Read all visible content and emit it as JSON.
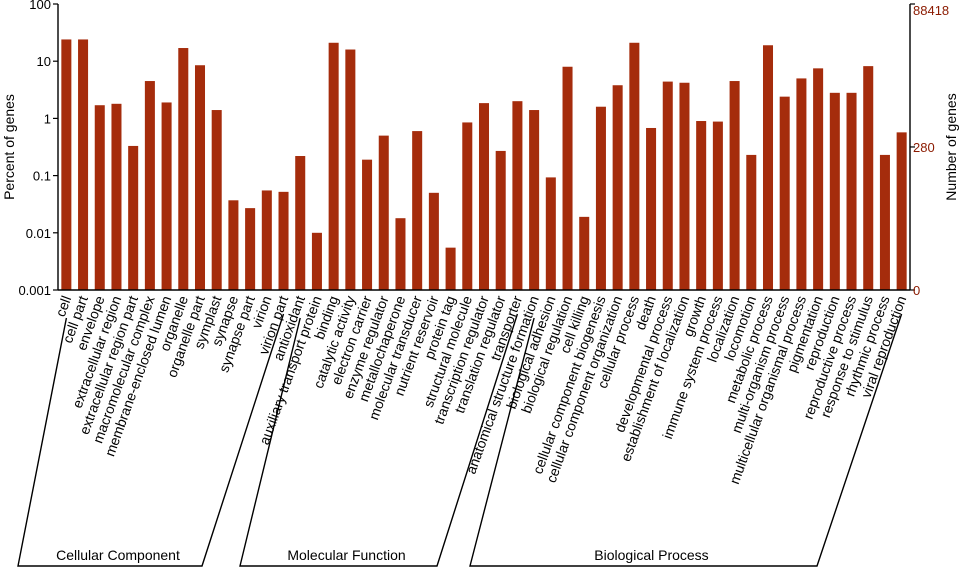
{
  "chart_data": {
    "type": "bar",
    "yscale": "log",
    "ylabel": "Percent of genes",
    "ylabel_right": "Number of genes",
    "ylim": [
      0.001,
      100
    ],
    "y_ticks": [
      "100",
      "10",
      "1",
      "0.1",
      "0.01",
      "0.001"
    ],
    "y_tick_values": [
      100,
      10,
      1,
      0.1,
      0.01,
      0.001
    ],
    "right_ticks": [
      "88418",
      "280",
      "0"
    ],
    "right_tick_values": [
      100,
      0.3167,
      0.001
    ],
    "colors": {
      "bar": "#a52c0c",
      "right_axis": "#8b1a00",
      "axis": "#000000"
    },
    "categories": [
      "cell",
      "cell part",
      "envelope",
      "extracellular region",
      "extracellular region part",
      "macromolecular complex",
      "membrane-enclosed lumen",
      "organelle",
      "organelle part",
      "symplast",
      "synapse",
      "synapse part",
      "virion",
      "virion part",
      "antioxidant",
      "auxiliary transport protein",
      "binding",
      "catalytic activity",
      "electron carrier",
      "enzyme regulator",
      "metallochaperone",
      "molecular transducer",
      "nutrient reservoir",
      "protein tag",
      "structural molecule",
      "transcription regulator",
      "translation regulator",
      "transporter",
      "anatomical structure formation",
      "biological adhesion",
      "biological regulation",
      "cell killing",
      "cellular component biogenesis",
      "cellular component organization",
      "cellular process",
      "death",
      "developmental process",
      "establishment of localization",
      "growth",
      "immune system process",
      "localization",
      "locomotion",
      "metabolic process",
      "multi-organism process",
      "multicellular organismal process",
      "pigmentation",
      "reproduction",
      "reproductive process",
      "response to stimulus",
      "rhythmic process",
      "viral reproduction"
    ],
    "values": [
      24,
      24,
      1.7,
      1.8,
      0.33,
      4.5,
      1.9,
      17,
      8.5,
      1.4,
      0.037,
      0.027,
      0.055,
      0.052,
      0.22,
      0.01,
      21,
      16,
      0.19,
      0.5,
      0.018,
      0.6,
      0.05,
      0.0055,
      0.85,
      1.85,
      0.27,
      2.0,
      1.4,
      0.093,
      8.0,
      0.019,
      1.6,
      3.8,
      21,
      0.68,
      4.4,
      4.2,
      0.9,
      0.88,
      4.5,
      0.23,
      19,
      2.4,
      5.0,
      7.5,
      2.8,
      2.8,
      8.2,
      0.23,
      0.57
    ],
    "groups": [
      {
        "name": "Cellular Component",
        "start": 0,
        "end": 13
      },
      {
        "name": "Molecular Function",
        "start": 14,
        "end": 27
      },
      {
        "name": "Biological Process",
        "start": 28,
        "end": 50
      }
    ]
  }
}
